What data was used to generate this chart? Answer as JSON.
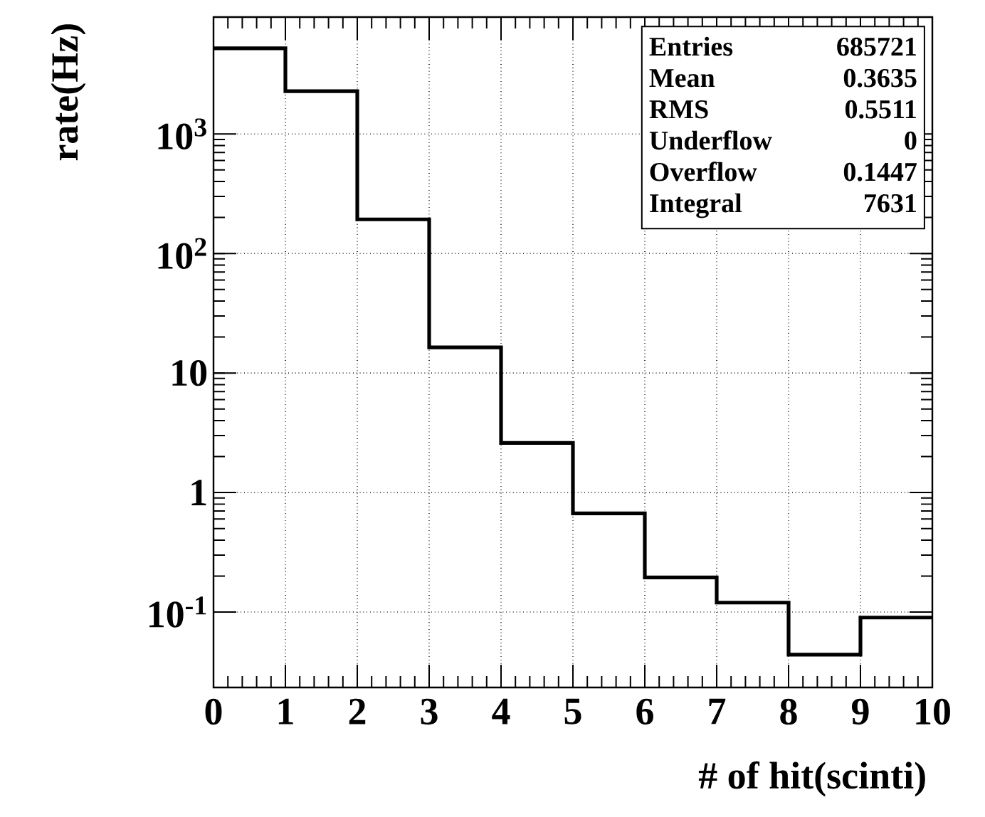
{
  "chart_data": {
    "type": "histogram",
    "xlabel": "# of hit(scinti)",
    "ylabel": "rate(Hz)",
    "bins": [
      0,
      1,
      2,
      3,
      4,
      5,
      6,
      7,
      8,
      9,
      10
    ],
    "values": [
      5200,
      2280,
      193,
      16.4,
      2.6,
      0.67,
      0.195,
      0.12,
      0.044,
      0.09
    ],
    "color": "#000000",
    "log": "y",
    "grid": true,
    "xlim": [
      0,
      10
    ],
    "ylim": [
      0.0234,
      9500
    ],
    "xticks": [
      0,
      1,
      2,
      3,
      4,
      5,
      6,
      7,
      8,
      9,
      10
    ],
    "yticks": [
      {
        "value": 0.1,
        "label": "10$^{-1}$"
      },
      1,
      10,
      {
        "value": 100,
        "label": "10$^{2}$"
      },
      {
        "value": 1000,
        "label": "10$^{3}$"
      }
    ],
    "annotations": [
      "Entries",
      "685721",
      "Mean",
      "0.3635",
      "RMS",
      "0.5511",
      "Underflow",
      "0",
      "Overflow",
      "0.1447",
      "Integral",
      "7631"
    ]
  }
}
